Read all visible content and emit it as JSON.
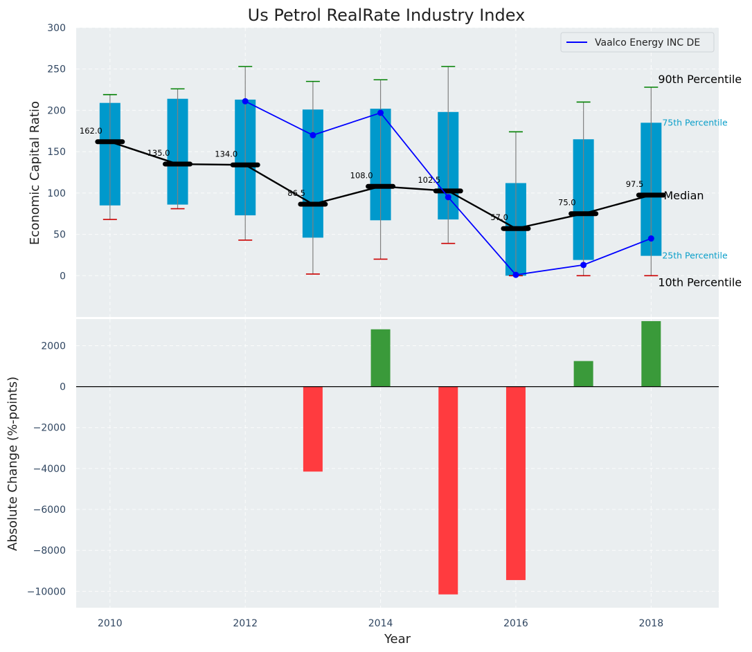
{
  "chart_data": [
    {
      "type": "box",
      "title": "Us Petrol RealRate Industry Index",
      "xlabel": "",
      "ylabel": "Economic Capital Ratio",
      "ylim": [
        -50,
        300
      ],
      "yticks": [
        0,
        50,
        100,
        150,
        200,
        250,
        300
      ],
      "xlim": [
        2009.5,
        2019
      ],
      "years": [
        2010,
        2011,
        2012,
        2013,
        2014,
        2015,
        2016,
        2017,
        2018
      ],
      "p10": [
        68,
        81,
        43,
        2,
        20,
        39,
        0,
        0,
        0
      ],
      "p25": [
        85,
        86,
        73,
        46,
        67,
        68,
        0,
        19,
        24
      ],
      "median": [
        162.0,
        135.0,
        134.0,
        86.5,
        108.0,
        102.5,
        57.0,
        75.0,
        97.5
      ],
      "median_labels": [
        "162.0",
        "135.0",
        "134.0",
        "86.5",
        "108.0",
        "102.5",
        "57.0",
        "75.0",
        "97.5"
      ],
      "p75": [
        209,
        214,
        213,
        201,
        202,
        198,
        112,
        165,
        185
      ],
      "p90": [
        219,
        226,
        253,
        235,
        237,
        253,
        174,
        210,
        228
      ],
      "company_series": {
        "name": "Vaalco Energy INC DE",
        "years": [
          2012,
          2013,
          2014,
          2015,
          2016,
          2017,
          2018
        ],
        "values": [
          211,
          170,
          197,
          95,
          1,
          13,
          45
        ]
      },
      "annotations": {
        "p90": "90th Percentile",
        "p75": "75th Percentile",
        "median": "Median",
        "p25": "25th Percentile",
        "p10": "10th Percentile"
      },
      "legend": {
        "position": "top-right",
        "entries": [
          "Vaalco Energy INC DE"
        ]
      },
      "colors": {
        "box": "#0099cc",
        "median": "#000000",
        "company": "#0000ff",
        "p90_cap": "#008000",
        "p10_cap": "#cc0000",
        "whisker": "#808080",
        "background": "#eaeef0"
      }
    },
    {
      "type": "bar",
      "title": "",
      "xlabel": "Year",
      "ylabel": "Absolute Change (%-points)",
      "ylim": [
        -10800,
        3300
      ],
      "yticks": [
        -10000,
        -8000,
        -6000,
        -4000,
        -2000,
        0,
        2000
      ],
      "ytick_labels": [
        "−10000",
        "−8000",
        "−6000",
        "−4000",
        "−2000",
        "0",
        "2000"
      ],
      "xticks": [
        2010,
        2012,
        2014,
        2016,
        2018
      ],
      "xlim": [
        2009.5,
        2019
      ],
      "years": [
        2013,
        2014,
        2015,
        2016,
        2017,
        2018
      ],
      "values": [
        -4150,
        2800,
        -10150,
        -9450,
        1250,
        3200
      ],
      "colors": {
        "positive": "#3a9a3a",
        "negative": "#ff3b3f",
        "zero_line": "#000000"
      }
    }
  ]
}
